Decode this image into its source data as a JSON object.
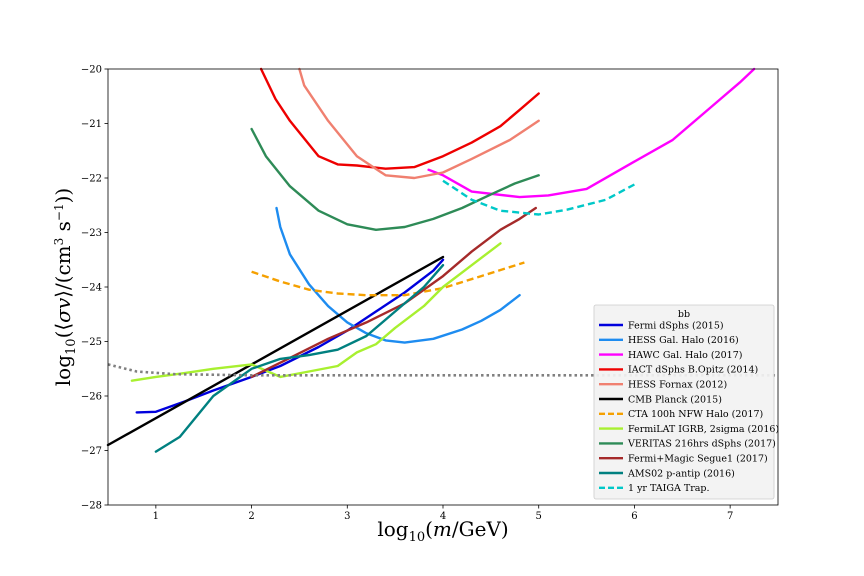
{
  "chart_data": {
    "type": "line",
    "xlabel": "log10(m/GeV)",
    "ylabel": "log10(⟨σv⟩/(cm3 s−1))",
    "xlim": [
      0.5,
      7.5
    ],
    "ylim": [
      -28,
      -20
    ],
    "x_ticks": [
      "1",
      "2",
      "3",
      "4",
      "5",
      "6",
      "7"
    ],
    "y_ticks": [
      "−28",
      "−27",
      "−26",
      "−25",
      "−24",
      "−23",
      "−22",
      "−21",
      "−20"
    ],
    "grid": false,
    "legend_placement": "lower-right",
    "legend_title": "bb",
    "series": [
      {
        "name": "Fermi dSphs (2015)",
        "color": "#0000dd",
        "style": "solid",
        "x": [
          0.8,
          1.0,
          1.3,
          1.6,
          2.0,
          2.3,
          2.7,
          3.0,
          3.3,
          3.6,
          3.9,
          4.0
        ],
        "y": [
          -26.3,
          -26.29,
          -26.1,
          -25.9,
          -25.65,
          -25.45,
          -25.1,
          -24.8,
          -24.45,
          -24.1,
          -23.7,
          -23.5
        ]
      },
      {
        "name": "HESS Gal. Halo (2016)",
        "color": "#1e8cf0",
        "style": "solid",
        "x": [
          2.26,
          2.3,
          2.4,
          2.6,
          2.8,
          3.0,
          3.2,
          3.4,
          3.6,
          3.9,
          4.2,
          4.4,
          4.6,
          4.8
        ],
        "y": [
          -22.55,
          -22.9,
          -23.4,
          -23.95,
          -24.35,
          -24.65,
          -24.85,
          -24.98,
          -25.02,
          -24.95,
          -24.78,
          -24.62,
          -24.42,
          -24.15
        ]
      },
      {
        "name": "HAWC Gal. Halo (2017)",
        "color": "#ff00ff",
        "style": "solid",
        "x": [
          3.85,
          4.0,
          4.3,
          4.8,
          5.1,
          5.5,
          6.0,
          6.4,
          6.8,
          7.1,
          7.25
        ],
        "y": [
          -21.85,
          -21.95,
          -22.25,
          -22.35,
          -22.32,
          -22.2,
          -21.7,
          -21.3,
          -20.7,
          -20.25,
          -20.0
        ]
      },
      {
        "name": "IACT dSphs B.Opitz (2014)",
        "color": "#ee0000",
        "style": "solid",
        "x": [
          2.1,
          2.25,
          2.4,
          2.7,
          2.9,
          3.1,
          3.4,
          3.7,
          4.0,
          4.3,
          4.6,
          4.8,
          5.0
        ],
        "y": [
          -20.0,
          -20.55,
          -20.95,
          -21.6,
          -21.75,
          -21.77,
          -21.83,
          -21.8,
          -21.6,
          -21.35,
          -21.05,
          -20.75,
          -20.45
        ]
      },
      {
        "name": "HESS Fornax (2012)",
        "color": "#f08070",
        "style": "solid",
        "x": [
          2.5,
          2.55,
          2.8,
          3.1,
          3.4,
          3.7,
          4.0,
          4.3,
          4.7,
          5.0
        ],
        "y": [
          -20.0,
          -20.3,
          -20.95,
          -21.6,
          -21.95,
          -22.0,
          -21.9,
          -21.65,
          -21.3,
          -20.95
        ]
      },
      {
        "name": "CMB Planck (2015)",
        "color": "#000000",
        "style": "solid",
        "x": [
          0.5,
          4.0
        ],
        "y": [
          -26.9,
          -23.45
        ]
      },
      {
        "name": "CTA 100h NFW Halo (2017)",
        "color": "#f5a000",
        "style": "dashed",
        "x": [
          2.0,
          2.3,
          2.6,
          2.9,
          3.2,
          3.6,
          4.0,
          4.4,
          4.85
        ],
        "y": [
          -23.72,
          -23.9,
          -24.05,
          -24.12,
          -24.15,
          -24.15,
          -24.02,
          -23.8,
          -23.55
        ]
      },
      {
        "name": "FermiLAT IGRB, 2sigma (2016)",
        "color": "#a8f030",
        "style": "solid",
        "x": [
          0.75,
          1.0,
          1.3,
          1.6,
          2.0,
          2.3,
          2.6,
          2.9,
          3.1,
          3.3,
          3.5,
          3.8,
          4.0,
          4.3,
          4.6
        ],
        "y": [
          -25.72,
          -25.65,
          -25.58,
          -25.5,
          -25.42,
          -25.65,
          -25.55,
          -25.45,
          -25.2,
          -25.05,
          -24.75,
          -24.35,
          -24.0,
          -23.6,
          -23.2
        ]
      },
      {
        "name": "VERITAS 216hrs dSphs (2017)",
        "color": "#2e8b57",
        "style": "solid",
        "x": [
          2.0,
          2.15,
          2.4,
          2.7,
          3.0,
          3.3,
          3.6,
          3.9,
          4.2,
          4.5,
          4.75,
          5.0
        ],
        "y": [
          -21.1,
          -21.6,
          -22.15,
          -22.6,
          -22.85,
          -22.95,
          -22.9,
          -22.75,
          -22.55,
          -22.3,
          -22.1,
          -21.95
        ]
      },
      {
        "name": "Fermi+Magic Segue1 (2017)",
        "color": "#a52a2a",
        "style": "solid",
        "x": [
          2.0,
          2.4,
          2.8,
          3.2,
          3.6,
          4.0,
          4.3,
          4.6,
          4.8,
          4.97
        ],
        "y": [
          -25.65,
          -25.3,
          -24.95,
          -24.65,
          -24.3,
          -23.8,
          -23.35,
          -22.95,
          -22.75,
          -22.55
        ]
      },
      {
        "name": "AMS02 p-antip (2016)",
        "color": "#008080",
        "style": "solid",
        "x": [
          1.0,
          1.25,
          1.6,
          2.0,
          2.3,
          2.6,
          2.9,
          3.2,
          3.5,
          3.8,
          4.0
        ],
        "y": [
          -27.02,
          -26.75,
          -26.0,
          -25.5,
          -25.32,
          -25.25,
          -25.15,
          -24.9,
          -24.45,
          -24.0,
          -23.6
        ]
      },
      {
        "name": "1 yr TAIGA Trap.",
        "color": "#00c8c8",
        "style": "dashed",
        "x": [
          4.0,
          4.3,
          4.6,
          5.0,
          5.3,
          5.7,
          6.0
        ],
        "y": [
          -22.05,
          -22.4,
          -22.6,
          -22.67,
          -22.58,
          -22.4,
          -22.12
        ]
      },
      {
        "name": "",
        "color": "#808080",
        "style": "dotted",
        "x": [
          0.5,
          0.8,
          1.2,
          2.0,
          3.0,
          4.0,
          5.0,
          6.0,
          7.5
        ],
        "y": [
          -25.42,
          -25.55,
          -25.6,
          -25.62,
          -25.62,
          -25.62,
          -25.62,
          -25.62,
          -25.62
        ]
      }
    ]
  }
}
